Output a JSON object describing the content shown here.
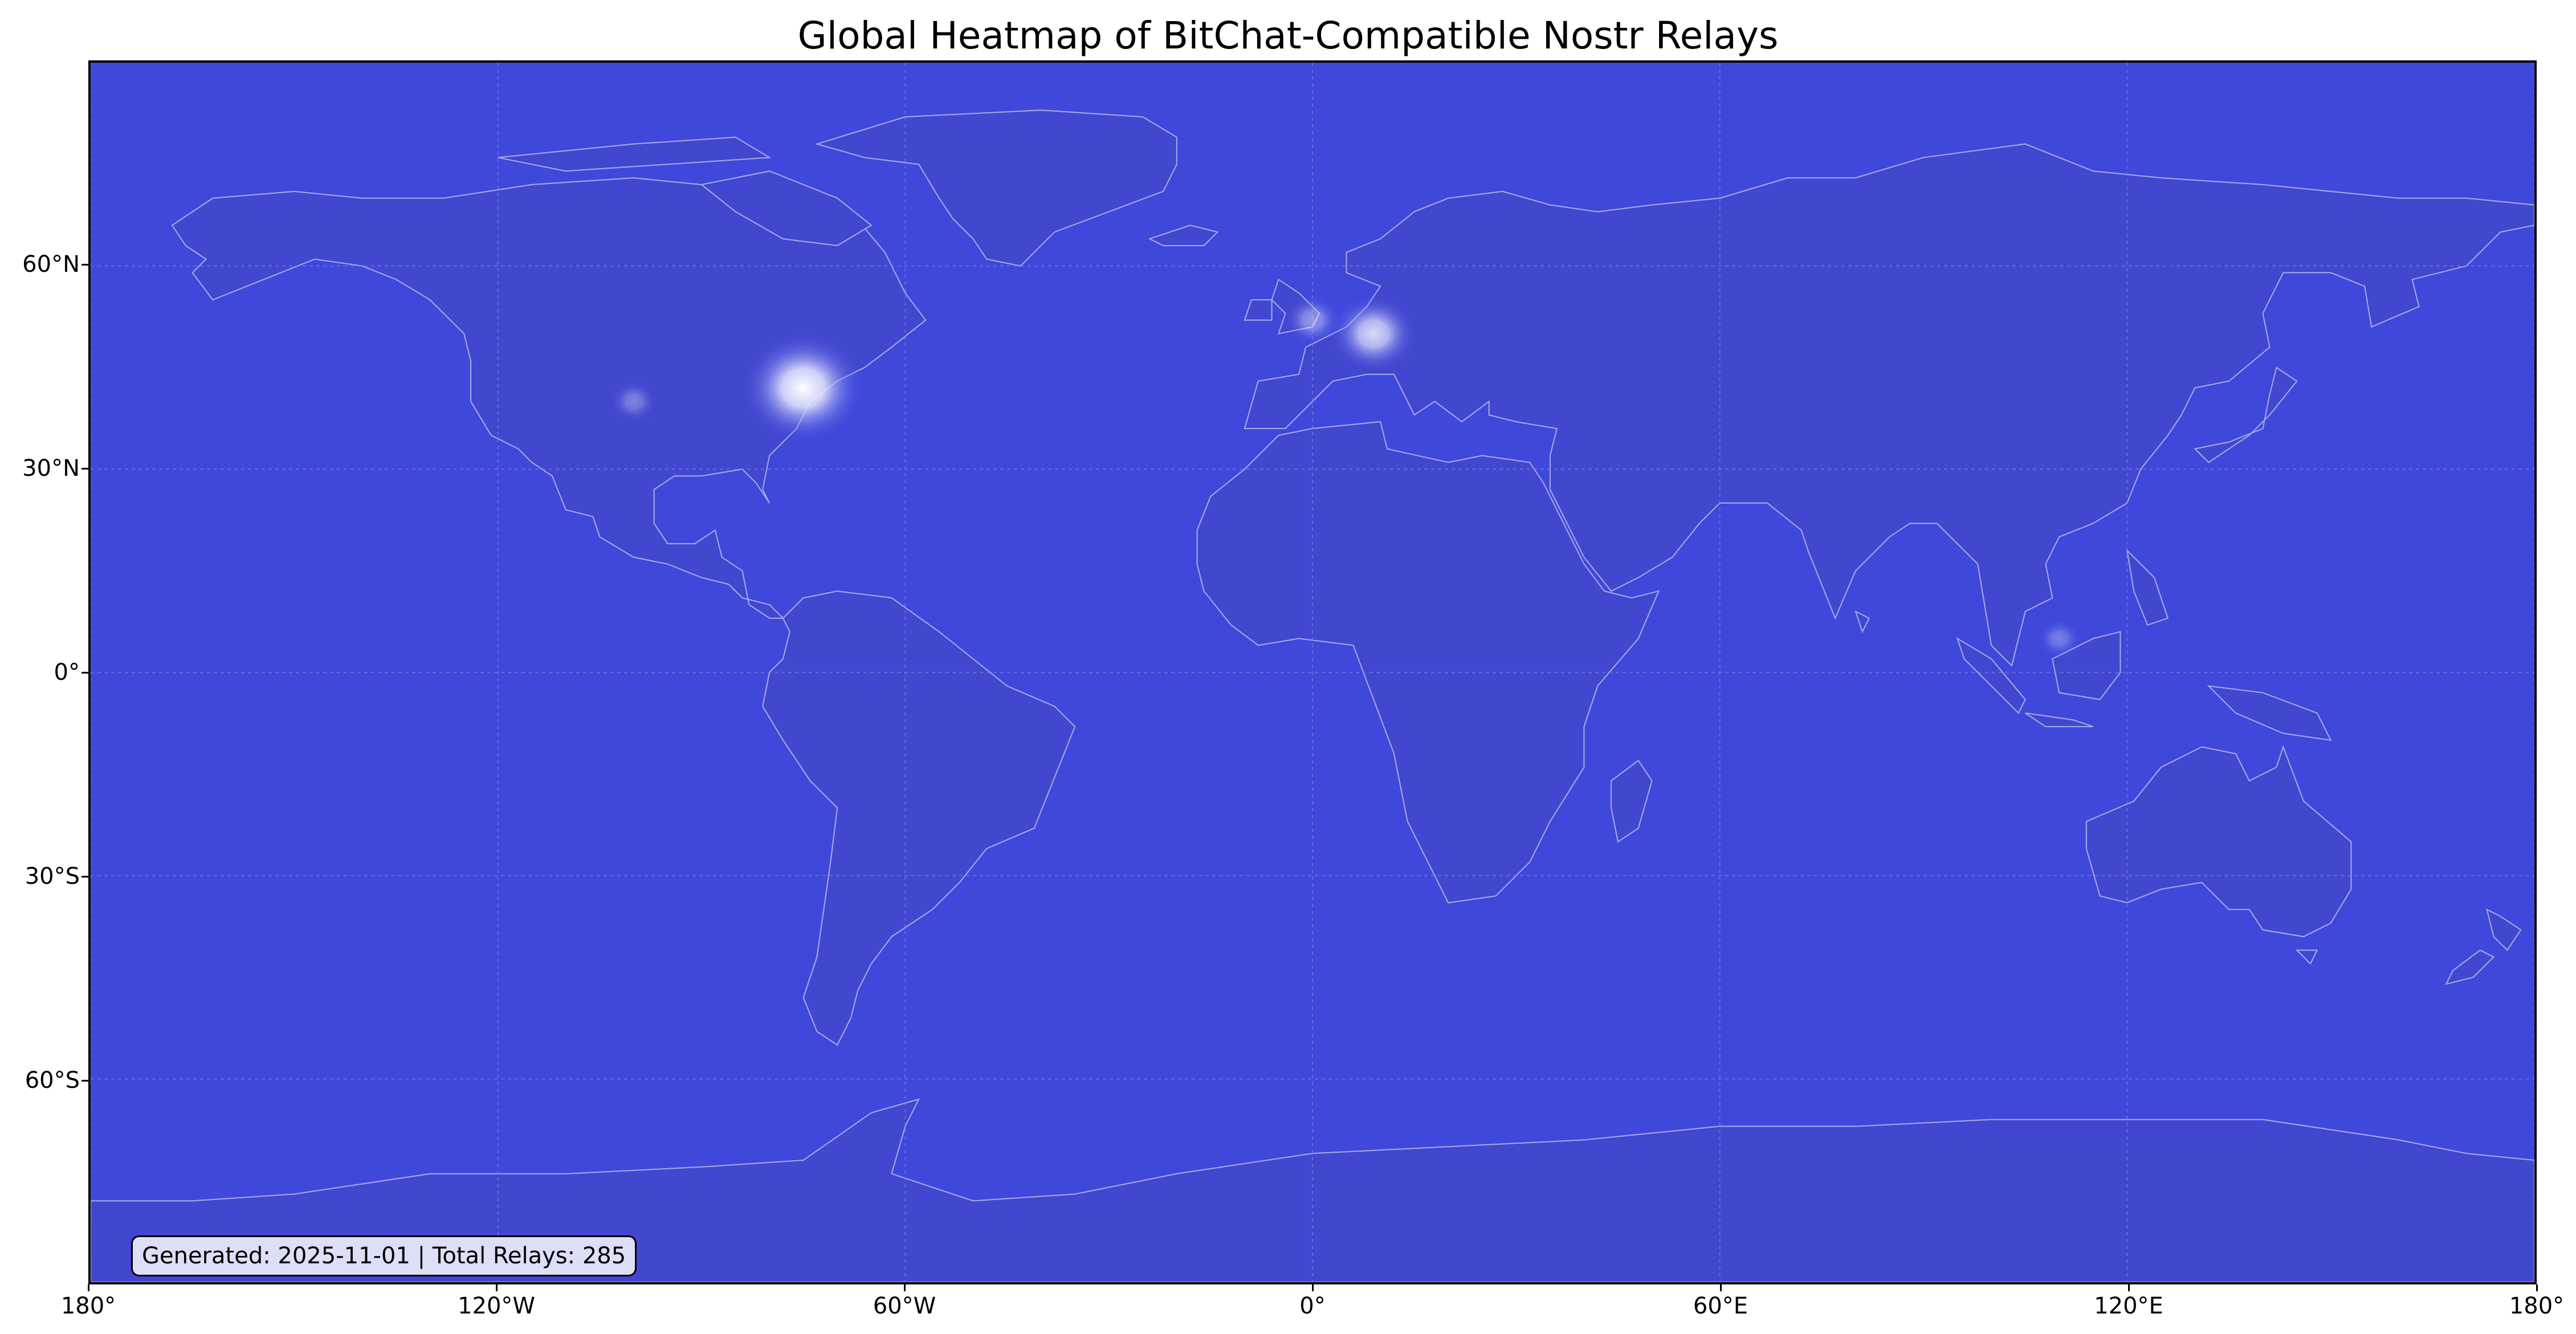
{
  "chart": {
    "title": "Global Heatmap of BitChat-Compatible Nostr Relays",
    "info_text": "Generated: 2025-11-01 | Total Relays: 285"
  },
  "chart_data": {
    "type": "heatmap",
    "title": "Global Heatmap of BitChat-Compatible Nostr Relays",
    "xlim": [
      -180,
      180
    ],
    "ylim": [
      -90,
      90
    ],
    "x_ticks": [
      {
        "value": -180,
        "label": "180°"
      },
      {
        "value": -120,
        "label": "120°W"
      },
      {
        "value": -60,
        "label": "60°W"
      },
      {
        "value": 0,
        "label": "0°"
      },
      {
        "value": 60,
        "label": "60°E"
      },
      {
        "value": 120,
        "label": "120°E"
      },
      {
        "value": 180,
        "label": "180°"
      }
    ],
    "y_ticks": [
      {
        "value": 60,
        "label": "60°N"
      },
      {
        "value": 30,
        "label": "30°N"
      },
      {
        "value": 0,
        "label": "0°"
      },
      {
        "value": -30,
        "label": "30°S"
      },
      {
        "value": -60,
        "label": "60°S"
      }
    ],
    "grid": true,
    "hotspots": [
      {
        "lon": -75,
        "lat": 42,
        "intensity": 1.0
      },
      {
        "lon": 9,
        "lat": 50,
        "intensity": 0.55
      },
      {
        "lon": 0,
        "lat": 52,
        "intensity": 0.2
      },
      {
        "lon": -100,
        "lat": 40,
        "intensity": 0.08
      },
      {
        "lon": 110,
        "lat": 5,
        "intensity": 0.05
      }
    ]
  },
  "colors": {
    "ocean": "#3f48db",
    "land": "#4247d0",
    "coastline": "#a9abe6",
    "grid": "#7a80e0",
    "heat": "#ffffff"
  }
}
